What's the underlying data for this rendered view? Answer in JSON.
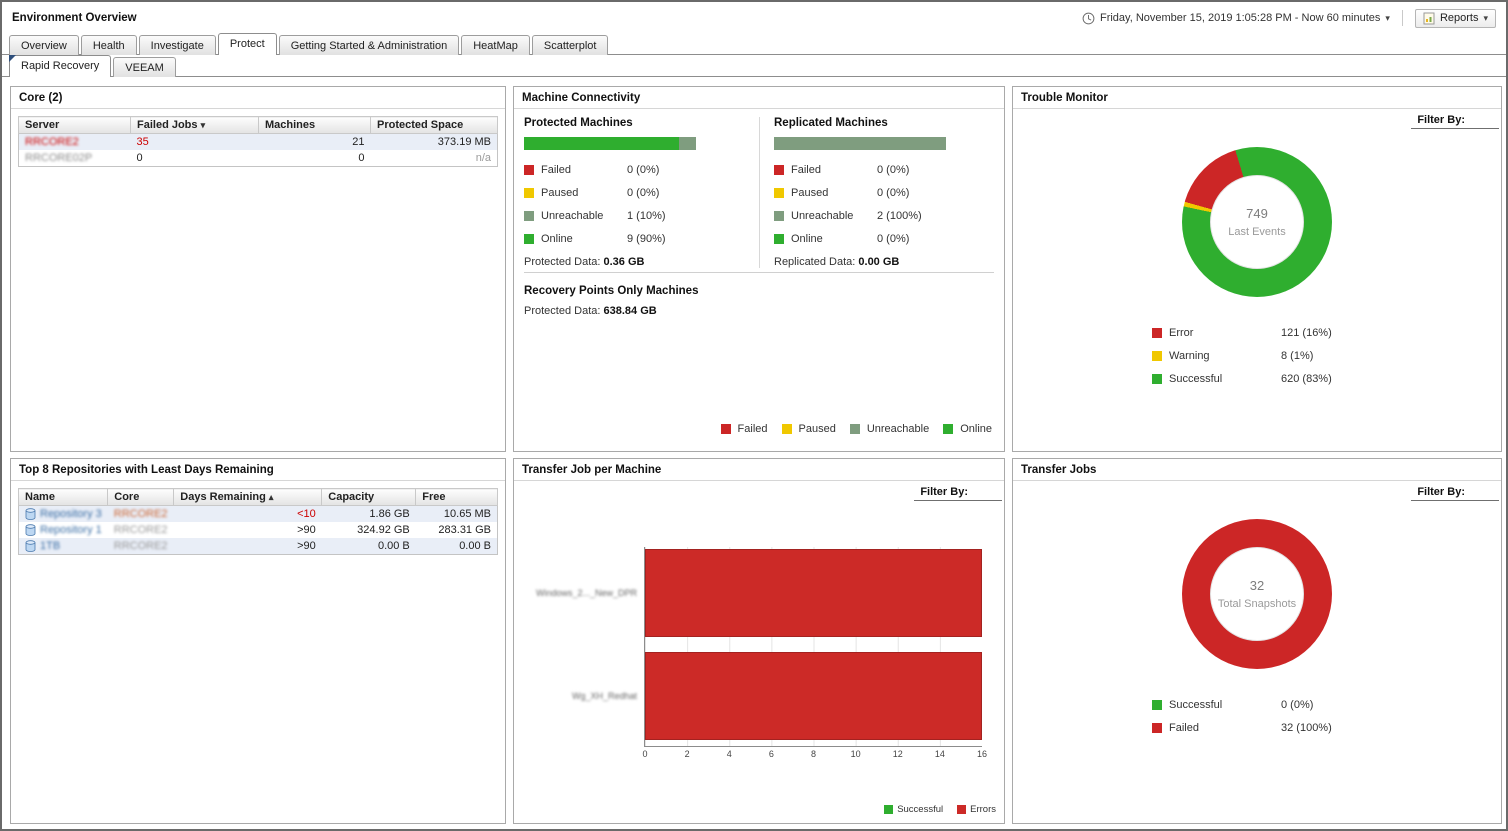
{
  "header": {
    "title": "Environment Overview",
    "time_range": "Friday, November 15, 2019 1:05:28 PM - Now 60 minutes",
    "reports_label": "Reports",
    "dropdown_caret": "▾"
  },
  "tabs": {
    "items": [
      {
        "label": "Overview"
      },
      {
        "label": "Health"
      },
      {
        "label": "Investigate"
      },
      {
        "label": "Protect"
      },
      {
        "label": "Getting Started & Administration"
      },
      {
        "label": "HeatMap"
      },
      {
        "label": "Scatterplot"
      }
    ],
    "active": "Protect"
  },
  "subtabs": {
    "items": [
      {
        "label": "Rapid Recovery"
      },
      {
        "label": "VEEAM"
      }
    ],
    "active": "Rapid Recovery"
  },
  "core_panel": {
    "title": "Core (2)",
    "columns": {
      "server": "Server",
      "failed_jobs": "Failed Jobs",
      "machines": "Machines",
      "protected_space": "Protected Space"
    },
    "sort_indicator": "▾",
    "rows": [
      {
        "server": "RRCORE2",
        "failed_jobs": "35",
        "machines": "21",
        "protected_space": "373.19 MB"
      },
      {
        "server": "RRCORE02P",
        "failed_jobs": "0",
        "machines": "0",
        "protected_space": "n/a"
      }
    ]
  },
  "machine_connectivity": {
    "title": "Machine Connectivity",
    "protected": {
      "heading": "Protected Machines",
      "bar": [
        {
          "color": "#2fae2f",
          "pct": 90
        },
        {
          "color": "#7f9d7f",
          "pct": 10
        }
      ],
      "legend": [
        {
          "color": "#cc2626",
          "label": "Failed",
          "value": "0 (0%)"
        },
        {
          "color": "#f0c800",
          "label": "Paused",
          "value": "0 (0%)"
        },
        {
          "color": "#7f9d7f",
          "label": "Unreachable",
          "value": "1 (10%)"
        },
        {
          "color": "#2fae2f",
          "label": "Online",
          "value": "9 (90%)"
        }
      ],
      "data_label": "Protected Data:",
      "data_value": "0.36 GB"
    },
    "replicated": {
      "heading": "Replicated Machines",
      "bar": [
        {
          "color": "#7f9d7f",
          "pct": 100
        }
      ],
      "legend": [
        {
          "color": "#cc2626",
          "label": "Failed",
          "value": "0 (0%)"
        },
        {
          "color": "#f0c800",
          "label": "Paused",
          "value": "0 (0%)"
        },
        {
          "color": "#7f9d7f",
          "label": "Unreachable",
          "value": "2 (100%)"
        },
        {
          "color": "#2fae2f",
          "label": "Online",
          "value": "0 (0%)"
        }
      ],
      "data_label": "Replicated Data:",
      "data_value": "0.00 GB"
    },
    "recovery_points": {
      "heading": "Recovery Points Only Machines",
      "data_label": "Protected Data:",
      "data_value": "638.84 GB"
    },
    "footer_legend": [
      {
        "color": "#cc2626",
        "label": "Failed"
      },
      {
        "color": "#f0c800",
        "label": "Paused"
      },
      {
        "color": "#7f9d7f",
        "label": "Unreachable"
      },
      {
        "color": "#2fae2f",
        "label": "Online"
      }
    ]
  },
  "trouble_monitor": {
    "title": "Trouble Monitor",
    "filter_label": "Filter By:",
    "chart_data": {
      "type": "pie",
      "donut": true,
      "start_angle": -78,
      "slices": [
        {
          "label": "Warning",
          "color": "#f0c800",
          "pct": 1
        },
        {
          "label": "Error",
          "color": "#cc2626",
          "pct": 16
        },
        {
          "label": "Successful",
          "color": "#2fae2f",
          "pct": 83
        }
      ],
      "center_value": "749",
      "center_label": "Last Events"
    },
    "legend": [
      {
        "color": "#cc2626",
        "label": "Error",
        "value": "121 (16%)"
      },
      {
        "color": "#f0c800",
        "label": "Warning",
        "value": "8 (1%)"
      },
      {
        "color": "#2fae2f",
        "label": "Successful",
        "value": "620 (83%)"
      }
    ]
  },
  "repositories_panel": {
    "title": "Top 8 Repositories with Least Days Remaining",
    "columns": {
      "name": "Name",
      "core": "Core",
      "days": "Days Remaining",
      "capacity": "Capacity",
      "free": "Free"
    },
    "sort_indicator": "▴",
    "rows": [
      {
        "name": "Repository 3",
        "core": "RRCORE2",
        "days": "<10",
        "capacity": "1.86 GB",
        "free": "10.65 MB"
      },
      {
        "name": "Repository 1",
        "core": "RRCORE2",
        "days": ">90",
        "capacity": "324.92 GB",
        "free": "283.31 GB"
      },
      {
        "name": "1TB",
        "core": "RRCORE2",
        "days": ">90",
        "capacity": "0.00 B",
        "free": "0.00 B"
      }
    ]
  },
  "transfer_job_chart": {
    "title": "Transfer Job per Machine",
    "filter_label": "Filter By:",
    "type": "bar",
    "orientation": "horizontal",
    "categories": [
      "Windows_2..._New_DPR",
      "Wg_XH_Redhat"
    ],
    "values": [
      16,
      16
    ],
    "series_color": "#cc2a27",
    "xmax": 16,
    "xticks": [
      "0",
      "2",
      "4",
      "6",
      "8",
      "10",
      "12",
      "14",
      "16"
    ],
    "legend": [
      {
        "color": "#2fae2f",
        "label": "Successful"
      },
      {
        "color": "#cc2a27",
        "label": "Errors"
      }
    ]
  },
  "transfer_jobs": {
    "title": "Transfer Jobs",
    "filter_label": "Filter By:",
    "chart_data": {
      "type": "pie",
      "donut": true,
      "start_angle": 0,
      "slices": [
        {
          "label": "Failed",
          "color": "#cc2626",
          "pct": 100
        }
      ],
      "center_value": "32",
      "center_label": "Total Snapshots"
    },
    "legend": [
      {
        "color": "#2fae2f",
        "label": "Successful",
        "value": "0 (0%)"
      },
      {
        "color": "#cc2626",
        "label": "Failed",
        "value": "32 (100%)"
      }
    ]
  }
}
